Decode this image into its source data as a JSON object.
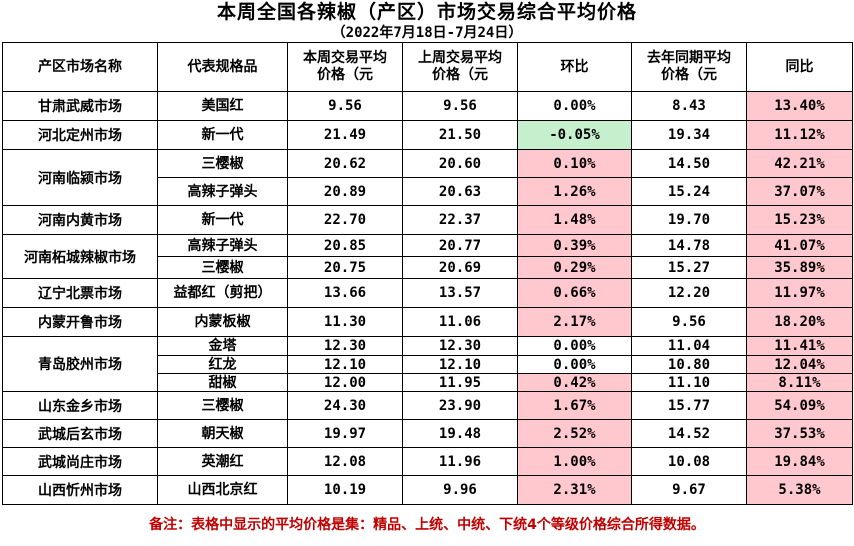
{
  "title": "本周全国各辣椒（产区）市场交易综合平均价格",
  "subtitle": "（2022年7月18日-7月24日）",
  "headers": {
    "market": "产区市场名称",
    "spec": "代表规格品",
    "this_week_line1": "本周交易平均",
    "this_week_line2": "价格（元",
    "last_week_line1": "上周交易平均",
    "last_week_line2": "价格（元",
    "mom": "环比",
    "last_year_line1": "去年同期平均",
    "last_year_line2": "价格（元",
    "yoy": "同比"
  },
  "rows": [
    {
      "market": "甘肃武威市场",
      "spec": "美国红",
      "this_week": "9.56",
      "last_week": "9.56",
      "mom": "0.00%",
      "last_year": "8.43",
      "yoy": "13.40%"
    },
    {
      "market": "河北定州市场",
      "spec": "新一代",
      "this_week": "21.49",
      "last_week": "21.50",
      "mom": "-0.05%",
      "last_year": "19.34",
      "yoy": "11.12%"
    },
    {
      "market": "河南临颍市场",
      "spec": "三樱椒",
      "this_week": "20.62",
      "last_week": "20.60",
      "mom": "0.10%",
      "last_year": "14.50",
      "yoy": "42.21%"
    },
    {
      "market": "",
      "spec": "高辣子弹头",
      "this_week": "20.89",
      "last_week": "20.63",
      "mom": "1.26%",
      "last_year": "15.24",
      "yoy": "37.07%"
    },
    {
      "market": "河南内黄市场",
      "spec": "新一代",
      "this_week": "22.70",
      "last_week": "22.37",
      "mom": "1.48%",
      "last_year": "19.70",
      "yoy": "15.23%"
    },
    {
      "market": "河南柘城辣椒市场",
      "spec": "高辣子弹头",
      "this_week": "20.85",
      "last_week": "20.77",
      "mom": "0.39%",
      "last_year": "14.78",
      "yoy": "41.07%"
    },
    {
      "market": "",
      "spec": "三樱椒",
      "this_week": "20.75",
      "last_week": "20.69",
      "mom": "0.29%",
      "last_year": "15.27",
      "yoy": "35.89%"
    },
    {
      "market": "辽宁北票市场",
      "spec": "益都红（剪把）",
      "this_week": "13.66",
      "last_week": "13.57",
      "mom": "0.66%",
      "last_year": "12.20",
      "yoy": "11.97%"
    },
    {
      "market": "内蒙开鲁市场",
      "spec": "内蒙板椒",
      "this_week": "11.30",
      "last_week": "11.06",
      "mom": "2.17%",
      "last_year": "9.56",
      "yoy": "18.20%"
    },
    {
      "market": "青岛胶州市场",
      "spec": "金塔",
      "this_week": "12.30",
      "last_week": "12.30",
      "mom": "0.00%",
      "last_year": "11.04",
      "yoy": "11.41%"
    },
    {
      "market": "",
      "spec": "红龙",
      "this_week": "12.10",
      "last_week": "12.10",
      "mom": "0.00%",
      "last_year": "10.80",
      "yoy": "12.04%"
    },
    {
      "market": "",
      "spec": "甜椒",
      "this_week": "12.00",
      "last_week": "11.95",
      "mom": "0.42%",
      "last_year": "11.10",
      "yoy": "8.11%"
    },
    {
      "market": "山东金乡市场",
      "spec": "三樱椒",
      "this_week": "24.30",
      "last_week": "23.90",
      "mom": "1.67%",
      "last_year": "15.77",
      "yoy": "54.09%"
    },
    {
      "market": "武城后玄市场",
      "spec": "朝天椒",
      "this_week": "19.97",
      "last_week": "19.48",
      "mom": "2.52%",
      "last_year": "14.52",
      "yoy": "37.53%"
    },
    {
      "market": "武城尚庄市场",
      "spec": "英潮红",
      "this_week": "12.08",
      "last_week": "11.96",
      "mom": "1.00%",
      "last_year": "10.08",
      "yoy": "19.84%"
    },
    {
      "market": "山西忻州市场",
      "spec": "山西北京红",
      "this_week": "10.19",
      "last_week": "9.96",
      "mom": "2.31%",
      "last_year": "9.67",
      "yoy": "5.38%"
    }
  ],
  "note": "备注：表格中显示的平均价格是集：精品、上统、中统、下统4个等级价格综合所得数据。",
  "colors": {
    "increase_fill": "#ffc7ce",
    "decrease_fill": "#c6efce",
    "note_text": "#c00000"
  }
}
